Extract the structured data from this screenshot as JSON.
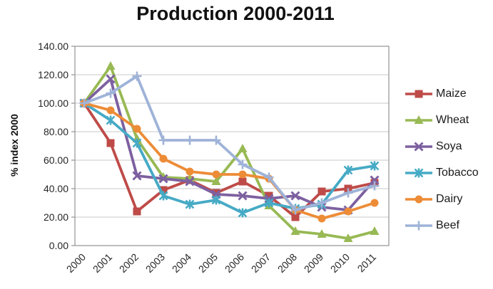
{
  "chart_data": {
    "type": "line",
    "title": "Production 2000-2011",
    "xlabel": "",
    "ylabel": "% index 2000",
    "ylim": [
      0,
      140
    ],
    "ytick_step": 20,
    "ytick_decimals": 2,
    "grid": true,
    "legend_position": "right",
    "background_color": "#FFFFFF",
    "grid_color": "#C8C8C8",
    "axis_color": "#9B9B9B",
    "tick_label_color": "#262626",
    "categories": [
      "2000",
      "2001",
      "2002",
      "2003",
      "2004",
      "2005",
      "2006",
      "2007",
      "2008",
      "2009",
      "2010",
      "2011"
    ],
    "series": [
      {
        "name": "Maize",
        "color": "#BE4B48",
        "marker": "square",
        "values": [
          100,
          72,
          24,
          39,
          46,
          37,
          45,
          35,
          20,
          38,
          40,
          44
        ]
      },
      {
        "name": "Wheat",
        "color": "#98B954",
        "marker": "triangle",
        "values": [
          100,
          126,
          75,
          48,
          47,
          45,
          68,
          28,
          10,
          8,
          5,
          10
        ]
      },
      {
        "name": "Soya",
        "color": "#7D60A0",
        "marker": "x",
        "values": [
          100,
          117,
          49,
          47,
          45,
          36,
          35,
          33,
          35,
          27,
          25,
          46
        ]
      },
      {
        "name": "Tobacco",
        "color": "#46AAC5",
        "marker": "star",
        "values": [
          100,
          88,
          72,
          35,
          29,
          32,
          23,
          30,
          26,
          29,
          53,
          56
        ]
      },
      {
        "name": "Dairy",
        "color": "#ED8C37",
        "marker": "circle",
        "values": [
          100,
          95,
          82,
          61,
          52,
          50,
          50,
          47,
          25,
          19,
          24,
          30
        ]
      },
      {
        "name": "Beef",
        "color": "#9FB3D8",
        "marker": "plus",
        "values": [
          100,
          107,
          119,
          74,
          74,
          74,
          57,
          48,
          25,
          30,
          37,
          42
        ]
      }
    ]
  }
}
